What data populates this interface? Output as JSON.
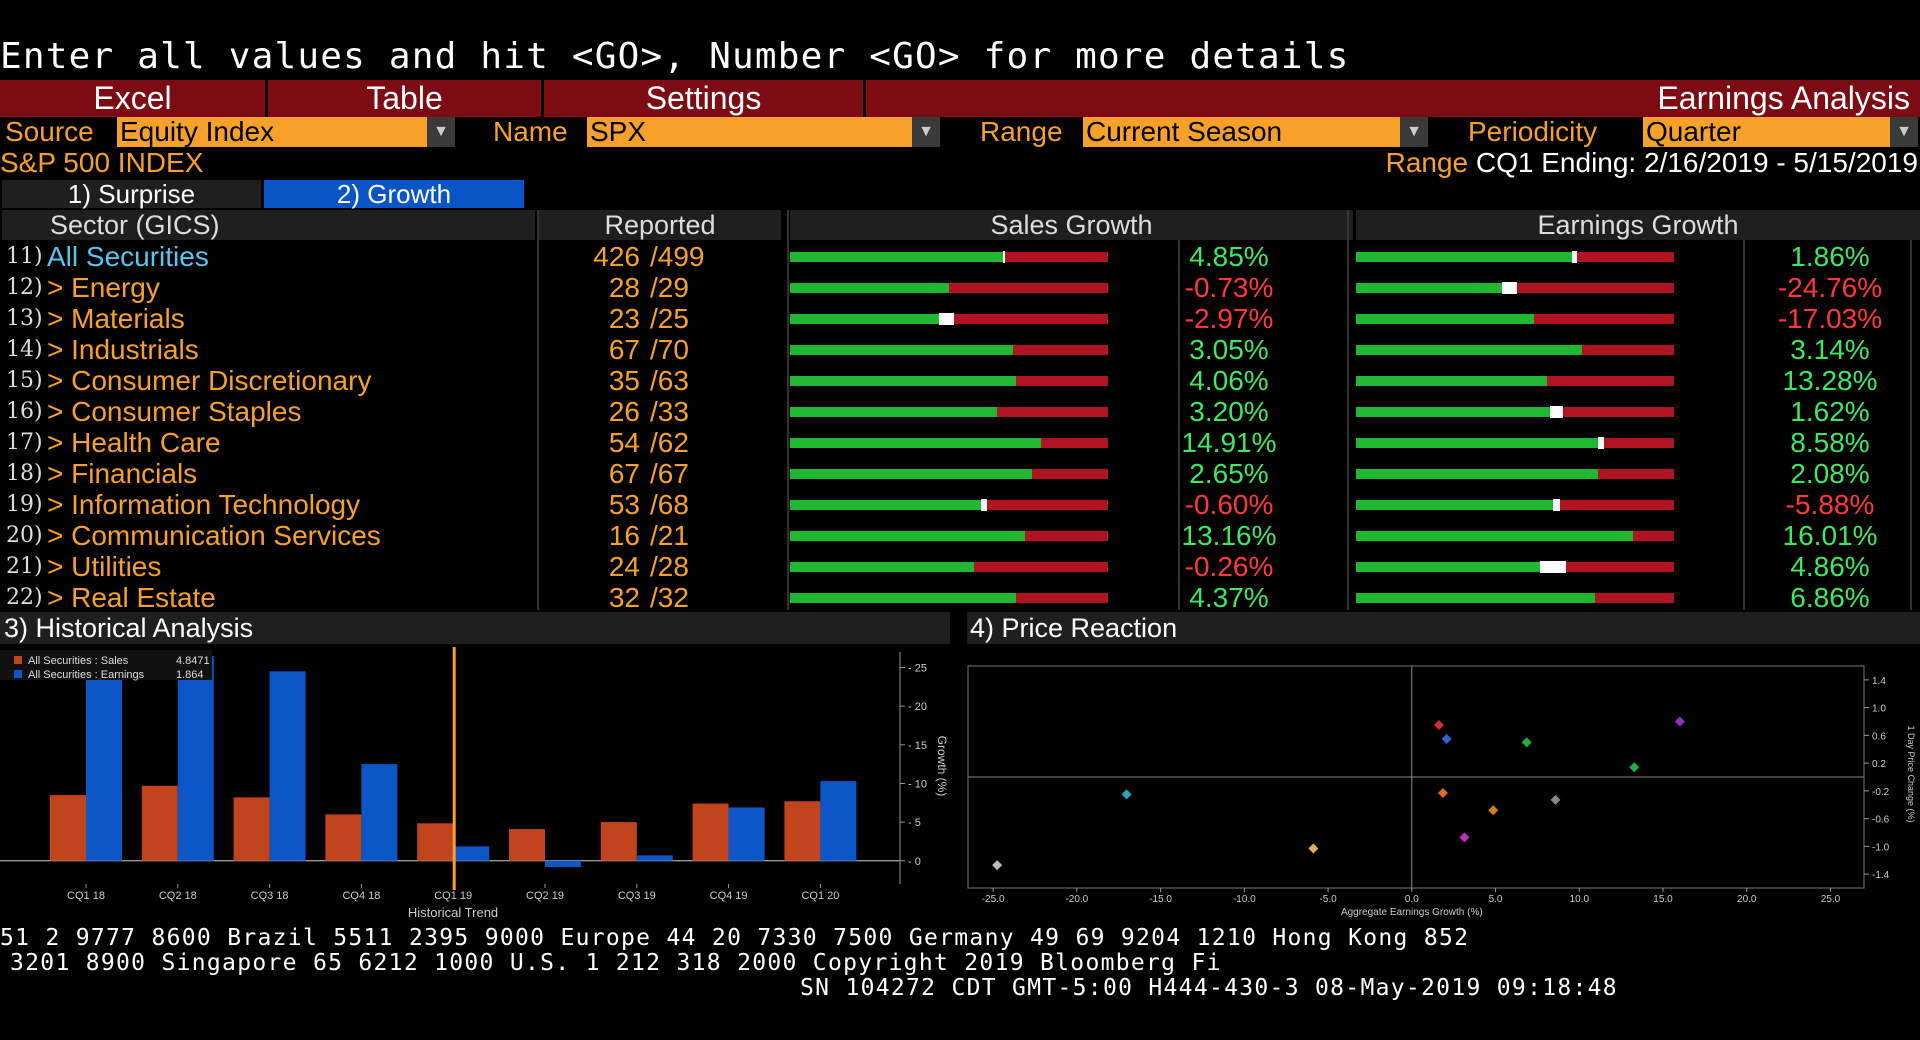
{
  "command_line": "Enter all values and hit <GO>, Number <GO> for more details",
  "toolbar": {
    "excel": "Excel",
    "table": "Table",
    "settings": "Settings",
    "title": "Earnings Analysis"
  },
  "filters": {
    "source_label": "Source",
    "source_value": "Equity Index",
    "name_label": "Name",
    "name_value": "SPX",
    "range_label": "Range",
    "range_value": "Current Season",
    "periodicity_label": "Periodicity",
    "periodicity_value": "Quarter"
  },
  "index_name": "S&P 500 INDEX",
  "range_info": {
    "label": "Range",
    "value": "CQ1 Ending: 2/16/2019 - 5/15/2019"
  },
  "tabs": [
    {
      "label": "1) Surprise",
      "active": false
    },
    {
      "label": "2) Growth",
      "active": true
    }
  ],
  "table": {
    "headers": {
      "sector": "Sector (GICS)",
      "reported": "Reported",
      "sales": "Sales Growth",
      "earnings": "Earnings Growth"
    },
    "rows": [
      {
        "num": "11)",
        "name": "All Securities",
        "reported": "426",
        "total": "/499",
        "sales": "4.85%",
        "sales_val": 4.85,
        "earn": "1.86%",
        "earn_val": 1.86
      },
      {
        "num": "12)",
        "name": "> Energy",
        "reported": "28",
        "total": "/29",
        "sales": "-0.73%",
        "sales_val": -0.73,
        "earn": "-24.76%",
        "earn_val": -24.76
      },
      {
        "num": "13)",
        "name": "> Materials",
        "reported": "23",
        "total": "/25",
        "sales": "-2.97%",
        "sales_val": -2.97,
        "earn": "-17.03%",
        "earn_val": -17.03
      },
      {
        "num": "14)",
        "name": "> Industrials",
        "reported": "67",
        "total": "/70",
        "sales": "3.05%",
        "sales_val": 3.05,
        "earn": "3.14%",
        "earn_val": 3.14
      },
      {
        "num": "15)",
        "name": "> Consumer Discretionary",
        "reported": "35",
        "total": "/63",
        "sales": "4.06%",
        "sales_val": 4.06,
        "earn": "13.28%",
        "earn_val": 13.28
      },
      {
        "num": "16)",
        "name": "> Consumer Staples",
        "reported": "26",
        "total": "/33",
        "sales": "3.20%",
        "sales_val": 3.2,
        "earn": "1.62%",
        "earn_val": 1.62
      },
      {
        "num": "17)",
        "name": "> Health Care",
        "reported": "54",
        "total": "/62",
        "sales": "14.91%",
        "sales_val": 14.91,
        "earn": "8.58%",
        "earn_val": 8.58
      },
      {
        "num": "18)",
        "name": "> Financials",
        "reported": "67",
        "total": "/67",
        "sales": "2.65%",
        "sales_val": 2.65,
        "earn": "2.08%",
        "earn_val": 2.08
      },
      {
        "num": "19)",
        "name": "> Information Technology",
        "reported": "53",
        "total": "/68",
        "sales": "-0.60%",
        "sales_val": -0.6,
        "earn": "-5.88%",
        "earn_val": -5.88
      },
      {
        "num": "20)",
        "name": "> Communication Services",
        "reported": "16",
        "total": "/21",
        "sales": "13.16%",
        "sales_val": 13.16,
        "earn": "16.01%",
        "earn_val": 16.01
      },
      {
        "num": "21)",
        "name": "> Utilities",
        "reported": "24",
        "total": "/28",
        "sales": "-0.26%",
        "sales_val": -0.26,
        "earn": "4.86%",
        "earn_val": 4.86
      },
      {
        "num": "22)",
        "name": "> Real Estate",
        "reported": "32",
        "total": "/32",
        "sales": "4.37%",
        "sales_val": 4.37,
        "earn": "6.86%",
        "earn_val": 6.86
      }
    ]
  },
  "bar_fill": {
    "sales": [
      {
        "green": 0.67,
        "white": 0.005
      },
      {
        "green": 0.5,
        "white": 0
      },
      {
        "green": 0.47,
        "white": 0.045
      },
      {
        "green": 0.7,
        "white": 0
      },
      {
        "green": 0.71,
        "white": 0
      },
      {
        "green": 0.65,
        "white": 0
      },
      {
        "green": 0.79,
        "white": 0
      },
      {
        "green": 0.76,
        "white": 0
      },
      {
        "green": 0.6,
        "white": 0.02
      },
      {
        "green": 0.74,
        "white": 0
      },
      {
        "green": 0.58,
        "white": 0
      },
      {
        "green": 0.71,
        "white": 0
      }
    ],
    "earnings": [
      {
        "green": 0.68,
        "white": 0.015
      },
      {
        "green": 0.46,
        "white": 0.045
      },
      {
        "green": 0.56,
        "white": 0
      },
      {
        "green": 0.71,
        "white": 0
      },
      {
        "green": 0.6,
        "white": 0
      },
      {
        "green": 0.61,
        "white": 0.04
      },
      {
        "green": 0.76,
        "white": 0.02
      },
      {
        "green": 0.76,
        "white": 0
      },
      {
        "green": 0.62,
        "white": 0.02
      },
      {
        "green": 0.87,
        "white": 0
      },
      {
        "green": 0.58,
        "white": 0.08
      },
      {
        "green": 0.75,
        "white": 0
      }
    ]
  },
  "sections": {
    "historical": "3) Historical Analysis",
    "price": "4) Price Reaction"
  },
  "chart_data": [
    {
      "type": "bar",
      "categories": [
        "CQ1 18",
        "CQ2 18",
        "CQ3 18",
        "CQ4 18",
        "CQ1 19",
        "CQ2 19",
        "CQ3 19",
        "CQ4 19",
        "CQ1 20"
      ],
      "series": [
        {
          "name": "All Securities : Sales",
          "legend_value": "4.8471",
          "color": "#c1441c",
          "values": [
            8.5,
            9.7,
            8.2,
            6.0,
            4.85,
            4.1,
            5.0,
            7.4,
            7.7
          ]
        },
        {
          "name": "All Securities : Earnings",
          "legend_value": "1.864",
          "color": "#0c56c8",
          "values": [
            26.0,
            26.5,
            24.5,
            12.5,
            1.86,
            -0.8,
            0.7,
            6.9,
            10.3
          ]
        }
      ],
      "xlabel": "Historical Trend",
      "ylabel": "Growth (%)",
      "yticks": [
        0,
        5,
        10,
        15,
        20,
        25
      ],
      "ylim": [
        -3,
        27
      ],
      "marker_category": "CQ1 19"
    },
    {
      "type": "scatter",
      "xlabel": "Aggregate Earnings Growth (%)",
      "ylabel": "1 Day Price Change (%)",
      "xticks": [
        -25.0,
        -20.0,
        -15.0,
        -10.0,
        -5.0,
        0.0,
        5.0,
        10.0,
        15.0,
        20.0,
        25.0
      ],
      "yticks": [
        1.4,
        1.0,
        0.6,
        0.2,
        -0.2,
        -0.6,
        -1.0,
        -1.4
      ],
      "xlim": [
        -26.5,
        27
      ],
      "ylim": [
        -1.6,
        1.6
      ],
      "points": [
        {
          "x": -24.76,
          "y": -1.27,
          "color": "#bbbbbb"
        },
        {
          "x": -17.03,
          "y": -0.25,
          "color": "#2aa6b8"
        },
        {
          "x": -5.88,
          "y": -1.03,
          "color": "#e0b060"
        },
        {
          "x": 1.62,
          "y": 0.75,
          "color": "#d03030"
        },
        {
          "x": 2.08,
          "y": 0.55,
          "color": "#3060e0"
        },
        {
          "x": 1.86,
          "y": -0.23,
          "color": "#e06a20"
        },
        {
          "x": 4.86,
          "y": -0.48,
          "color": "#d08020"
        },
        {
          "x": 3.14,
          "y": -0.87,
          "color": "#c030c0"
        },
        {
          "x": 6.86,
          "y": 0.5,
          "color": "#20b040"
        },
        {
          "x": 8.58,
          "y": -0.33,
          "color": "#888888"
        },
        {
          "x": 13.28,
          "y": 0.14,
          "color": "#20b040"
        },
        {
          "x": 16.01,
          "y": 0.8,
          "color": "#9030c0"
        }
      ]
    }
  ],
  "footer": {
    "line1": "51 2 9777 8600 Brazil 5511 2395 9000 Europe 44 20 7330 7500 Germany 49 69 9204 1210 Hong Kong 852",
    "line2": "3201 8900      Singapore 65 6212 1000      U.S. 1 212 318 2000      Copyright 2019 Bloomberg Fi",
    "line3": "SN 104272 CDT  GMT-5:00 H444-430-3 08-May-2019 09:18:48"
  }
}
